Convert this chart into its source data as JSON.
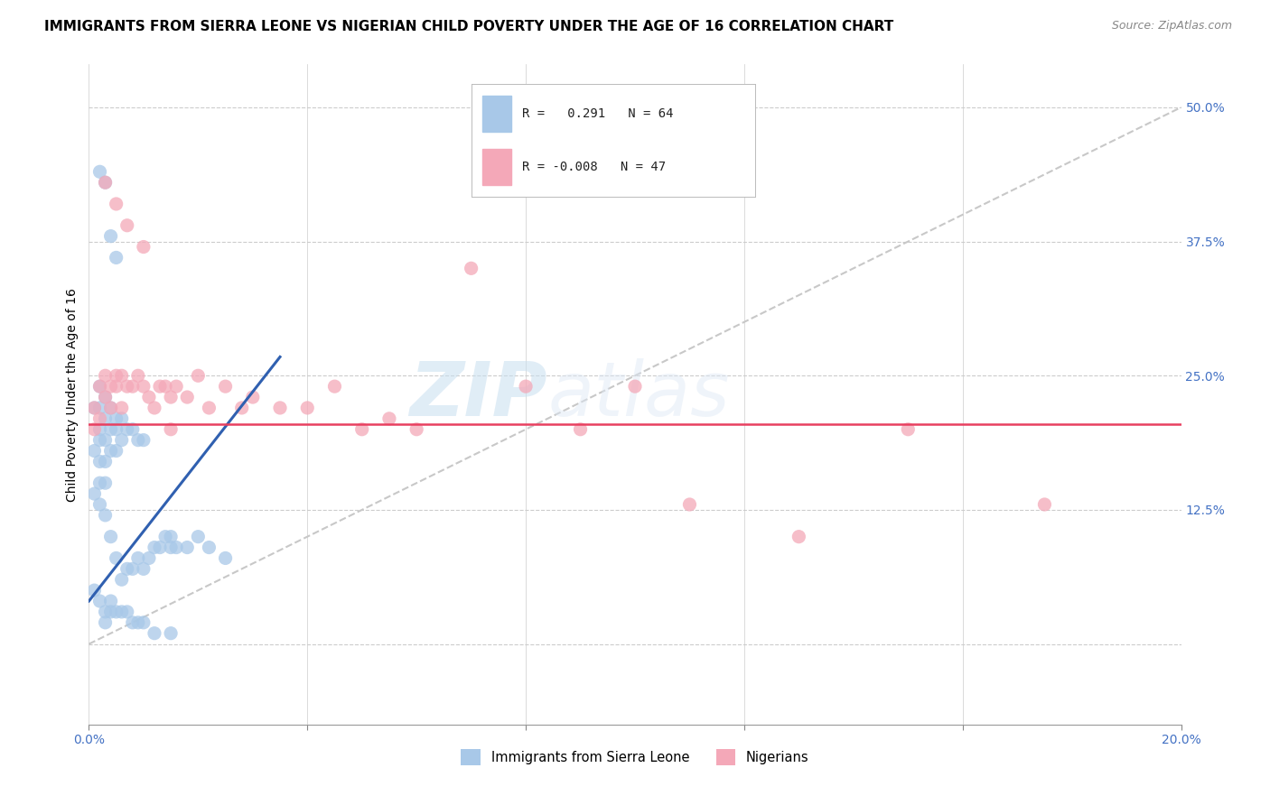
{
  "title": "IMMIGRANTS FROM SIERRA LEONE VS NIGERIAN CHILD POVERTY UNDER THE AGE OF 16 CORRELATION CHART",
  "source": "Source: ZipAtlas.com",
  "ylabel": "Child Poverty Under the Age of 16",
  "xlim": [
    0.0,
    0.2
  ],
  "ylim": [
    -0.075,
    0.54
  ],
  "xticks": [
    0.0,
    0.04,
    0.08,
    0.12,
    0.16,
    0.2
  ],
  "xtick_labels": [
    "0.0%",
    "",
    "",
    "",
    "",
    "20.0%"
  ],
  "yticks": [
    0.0,
    0.125,
    0.25,
    0.375,
    0.5
  ],
  "ytick_labels": [
    "",
    "12.5%",
    "25.0%",
    "37.5%",
    "50.0%"
  ],
  "blue_color": "#a8c8e8",
  "pink_color": "#f4a8b8",
  "blue_line_color": "#3060b0",
  "pink_line_color": "#e84060",
  "diag_line_color": "#c8c8c8",
  "watermark_zip": "ZIP",
  "watermark_atlas": "atlas",
  "legend_label_blue": "Immigrants from Sierra Leone",
  "legend_label_pink": "Nigerians",
  "blue_R": "0.291",
  "blue_N": "64",
  "pink_R": "-0.008",
  "pink_N": "47",
  "blue_scatter_x": [
    0.001,
    0.001,
    0.001,
    0.002,
    0.002,
    0.002,
    0.002,
    0.002,
    0.002,
    0.002,
    0.003,
    0.003,
    0.003,
    0.003,
    0.003,
    0.003,
    0.004,
    0.004,
    0.004,
    0.004,
    0.005,
    0.005,
    0.005,
    0.005,
    0.006,
    0.006,
    0.006,
    0.007,
    0.007,
    0.008,
    0.008,
    0.009,
    0.009,
    0.01,
    0.01,
    0.011,
    0.012,
    0.013,
    0.014,
    0.015,
    0.015,
    0.016,
    0.018,
    0.02,
    0.022,
    0.025,
    0.002,
    0.003,
    0.004,
    0.005,
    0.001,
    0.002,
    0.003,
    0.003,
    0.004,
    0.004,
    0.005,
    0.006,
    0.007,
    0.008,
    0.009,
    0.01,
    0.012,
    0.015
  ],
  "blue_scatter_y": [
    0.22,
    0.18,
    0.14,
    0.24,
    0.22,
    0.2,
    0.19,
    0.17,
    0.15,
    0.13,
    0.23,
    0.21,
    0.19,
    0.17,
    0.15,
    0.12,
    0.22,
    0.2,
    0.18,
    0.1,
    0.21,
    0.2,
    0.18,
    0.08,
    0.21,
    0.19,
    0.06,
    0.2,
    0.07,
    0.2,
    0.07,
    0.19,
    0.08,
    0.19,
    0.07,
    0.08,
    0.09,
    0.09,
    0.1,
    0.1,
    0.09,
    0.09,
    0.09,
    0.1,
    0.09,
    0.08,
    0.44,
    0.43,
    0.38,
    0.36,
    0.05,
    0.04,
    0.03,
    0.02,
    0.04,
    0.03,
    0.03,
    0.03,
    0.03,
    0.02,
    0.02,
    0.02,
    0.01,
    0.01
  ],
  "pink_scatter_x": [
    0.001,
    0.001,
    0.002,
    0.002,
    0.003,
    0.003,
    0.004,
    0.004,
    0.005,
    0.005,
    0.006,
    0.006,
    0.007,
    0.008,
    0.009,
    0.01,
    0.011,
    0.012,
    0.013,
    0.014,
    0.015,
    0.016,
    0.018,
    0.02,
    0.022,
    0.025,
    0.028,
    0.03,
    0.035,
    0.04,
    0.045,
    0.05,
    0.055,
    0.06,
    0.07,
    0.08,
    0.09,
    0.1,
    0.11,
    0.13,
    0.15,
    0.175,
    0.003,
    0.005,
    0.007,
    0.01,
    0.015
  ],
  "pink_scatter_y": [
    0.22,
    0.2,
    0.24,
    0.21,
    0.25,
    0.23,
    0.24,
    0.22,
    0.25,
    0.24,
    0.25,
    0.22,
    0.24,
    0.24,
    0.25,
    0.24,
    0.23,
    0.22,
    0.24,
    0.24,
    0.23,
    0.24,
    0.23,
    0.25,
    0.22,
    0.24,
    0.22,
    0.23,
    0.22,
    0.22,
    0.24,
    0.2,
    0.21,
    0.2,
    0.35,
    0.24,
    0.2,
    0.24,
    0.13,
    0.1,
    0.2,
    0.13,
    0.43,
    0.41,
    0.39,
    0.37,
    0.2
  ],
  "grid_color": "#cccccc",
  "title_fontsize": 11,
  "axis_label_fontsize": 10,
  "tick_fontsize": 10
}
